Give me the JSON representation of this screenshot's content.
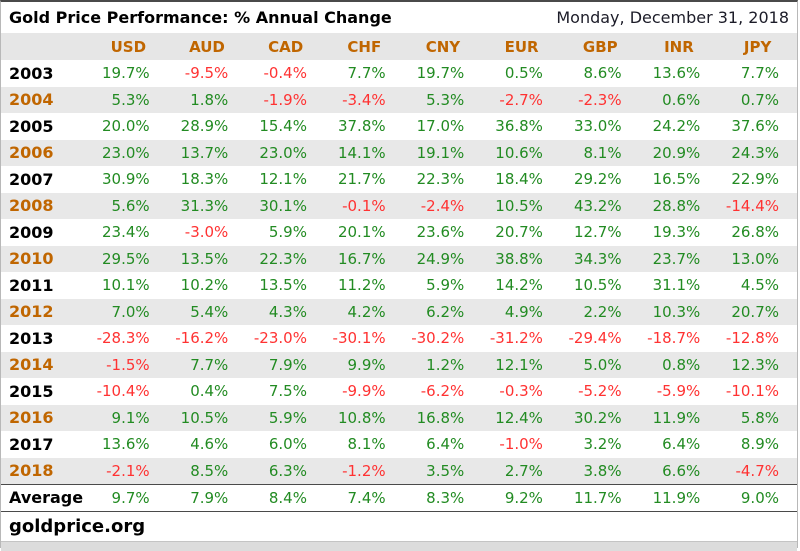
{
  "header": {
    "title": "Gold Price Performance: % Annual Change",
    "date": "Monday, December 31, 2018"
  },
  "chart_data": {
    "type": "table",
    "title": "Gold Price Performance: % Annual Change",
    "columns": [
      "USD",
      "AUD",
      "CAD",
      "CHF",
      "CNY",
      "EUR",
      "GBP",
      "INR",
      "JPY"
    ],
    "rows": [
      {
        "label": "2003",
        "values": [
          "19.7%",
          "-9.5%",
          "-0.4%",
          "7.7%",
          "19.7%",
          "0.5%",
          "8.6%",
          "13.6%",
          "7.7%"
        ]
      },
      {
        "label": "2004",
        "values": [
          "5.3%",
          "1.8%",
          "-1.9%",
          "-3.4%",
          "5.3%",
          "-2.7%",
          "-2.3%",
          "0.6%",
          "0.7%"
        ]
      },
      {
        "label": "2005",
        "values": [
          "20.0%",
          "28.9%",
          "15.4%",
          "37.8%",
          "17.0%",
          "36.8%",
          "33.0%",
          "24.2%",
          "37.6%"
        ]
      },
      {
        "label": "2006",
        "values": [
          "23.0%",
          "13.7%",
          "23.0%",
          "14.1%",
          "19.1%",
          "10.6%",
          "8.1%",
          "20.9%",
          "24.3%"
        ]
      },
      {
        "label": "2007",
        "values": [
          "30.9%",
          "18.3%",
          "12.1%",
          "21.7%",
          "22.3%",
          "18.4%",
          "29.2%",
          "16.5%",
          "22.9%"
        ]
      },
      {
        "label": "2008",
        "values": [
          "5.6%",
          "31.3%",
          "30.1%",
          "-0.1%",
          "-2.4%",
          "10.5%",
          "43.2%",
          "28.8%",
          "-14.4%"
        ]
      },
      {
        "label": "2009",
        "values": [
          "23.4%",
          "-3.0%",
          "5.9%",
          "20.1%",
          "23.6%",
          "20.7%",
          "12.7%",
          "19.3%",
          "26.8%"
        ]
      },
      {
        "label": "2010",
        "values": [
          "29.5%",
          "13.5%",
          "22.3%",
          "16.7%",
          "24.9%",
          "38.8%",
          "34.3%",
          "23.7%",
          "13.0%"
        ]
      },
      {
        "label": "2011",
        "values": [
          "10.1%",
          "10.2%",
          "13.5%",
          "11.2%",
          "5.9%",
          "14.2%",
          "10.5%",
          "31.1%",
          "4.5%"
        ]
      },
      {
        "label": "2012",
        "values": [
          "7.0%",
          "5.4%",
          "4.3%",
          "4.2%",
          "6.2%",
          "4.9%",
          "2.2%",
          "10.3%",
          "20.7%"
        ]
      },
      {
        "label": "2013",
        "values": [
          "-28.3%",
          "-16.2%",
          "-23.0%",
          "-30.1%",
          "-30.2%",
          "-31.2%",
          "-29.4%",
          "-18.7%",
          "-12.8%"
        ]
      },
      {
        "label": "2014",
        "values": [
          "-1.5%",
          "7.7%",
          "7.9%",
          "9.9%",
          "1.2%",
          "12.1%",
          "5.0%",
          "0.8%",
          "12.3%"
        ]
      },
      {
        "label": "2015",
        "values": [
          "-10.4%",
          "0.4%",
          "7.5%",
          "-9.9%",
          "-6.2%",
          "-0.3%",
          "-5.2%",
          "-5.9%",
          "-10.1%"
        ]
      },
      {
        "label": "2016",
        "values": [
          "9.1%",
          "10.5%",
          "5.9%",
          "10.8%",
          "16.8%",
          "12.4%",
          "30.2%",
          "11.9%",
          "5.8%"
        ]
      },
      {
        "label": "2017",
        "values": [
          "13.6%",
          "4.6%",
          "6.0%",
          "8.1%",
          "6.4%",
          "-1.0%",
          "3.2%",
          "6.4%",
          "8.9%"
        ]
      },
      {
        "label": "2018",
        "values": [
          "-2.1%",
          "8.5%",
          "6.3%",
          "-1.2%",
          "3.5%",
          "2.7%",
          "3.8%",
          "6.6%",
          "-4.7%"
        ]
      }
    ],
    "average_row": {
      "label": "Average",
      "values": [
        "9.7%",
        "7.9%",
        "8.4%",
        "7.4%",
        "8.3%",
        "9.2%",
        "11.7%",
        "11.9%",
        "9.0%"
      ]
    },
    "legend": "green = positive annual change, red = negative annual change",
    "grid": false
  },
  "footer": {
    "source": "goldprice.org"
  },
  "colors": {
    "positive_green": "#228B22",
    "negative_red": "#FF3232",
    "accent_orange": "#C06600",
    "row_alt_gray": "#E8E8E8"
  }
}
